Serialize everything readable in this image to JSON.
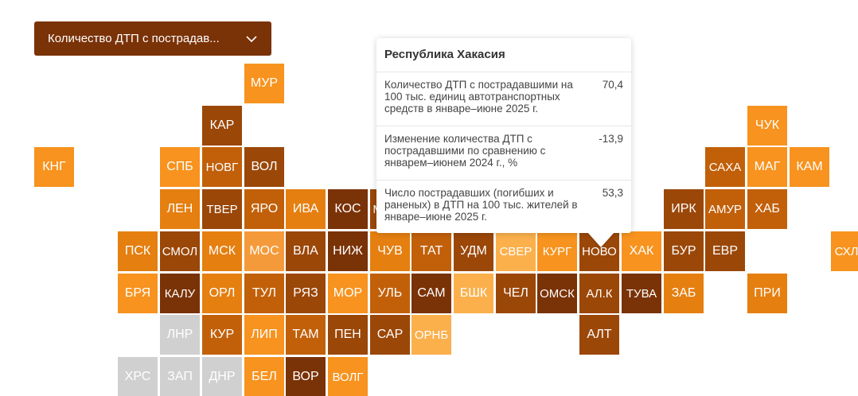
{
  "dropdown": {
    "label": "Количество ДТП с пострадав...",
    "icon": "chevron-down-icon"
  },
  "colors": {
    "c1": "#f7931e",
    "c2": "#e57f10",
    "c3": "#c2600a",
    "c4": "#9b4708",
    "c5": "#7a3207",
    "c6": "#fbb04c",
    "nodata": "#d0d0d0",
    "header": "#7a3207"
  },
  "regions": [
    {
      "code": "МУР",
      "color": "#f7931e"
    },
    {
      "code": "КАР",
      "color": "#9b4708"
    },
    {
      "code": "ЧУК",
      "color": "#f7931e"
    },
    {
      "code": "КНГ",
      "color": "#f7931e"
    },
    {
      "code": "СПБ",
      "color": "#f7931e"
    },
    {
      "code": "НОВГ",
      "color": "#c2600a"
    },
    {
      "code": "ВОЛ",
      "color": "#9b4708"
    },
    {
      "code": "САХА",
      "color": "#c2600a"
    },
    {
      "code": "МАГ",
      "color": "#f7931e"
    },
    {
      "code": "КАМ",
      "color": "#f7931e"
    },
    {
      "code": "ЛЕН",
      "color": "#e57f10"
    },
    {
      "code": "ТВЕР",
      "color": "#9b4708"
    },
    {
      "code": "ЯРО",
      "color": "#c2600a"
    },
    {
      "code": "ИВА",
      "color": "#e57f10"
    },
    {
      "code": "КОС",
      "color": "#7a3207"
    },
    {
      "code": "МАРИ",
      "color": "#9b4708"
    },
    {
      "code": "ИРК",
      "color": "#9b4708"
    },
    {
      "code": "АМУР",
      "color": "#c2600a"
    },
    {
      "code": "ХАБ",
      "color": "#c2600a"
    },
    {
      "code": "ПСК",
      "color": "#e57f10"
    },
    {
      "code": "СМОЛ",
      "color": "#9b4708"
    },
    {
      "code": "МСК",
      "color": "#e57f10"
    },
    {
      "code": "МОС",
      "color": "#f59a3a"
    },
    {
      "code": "ВЛА",
      "color": "#9b4708"
    },
    {
      "code": "НИЖ",
      "color": "#7a3207"
    },
    {
      "code": "ЧУВ",
      "color": "#e57f10"
    },
    {
      "code": "ТАТ",
      "color": "#c2600a"
    },
    {
      "code": "УДМ",
      "color": "#9b4708"
    },
    {
      "code": "СВЕР",
      "color": "#fbb04c"
    },
    {
      "code": "КУРГ",
      "color": "#f7931e"
    },
    {
      "code": "НОВО",
      "color": "#9b4708"
    },
    {
      "code": "ХАК",
      "color": "#f7931e"
    },
    {
      "code": "БУР",
      "color": "#9b4708"
    },
    {
      "code": "ЕВР",
      "color": "#9b4708"
    },
    {
      "code": "СХЛН",
      "color": "#f7931e"
    },
    {
      "code": "БРЯ",
      "color": "#f7931e"
    },
    {
      "code": "КАЛУ",
      "color": "#7a3207"
    },
    {
      "code": "ОРЛ",
      "color": "#e57f10"
    },
    {
      "code": "ТУЛ",
      "color": "#c2600a"
    },
    {
      "code": "РЯЗ",
      "color": "#9b4708"
    },
    {
      "code": "МОР",
      "color": "#f7931e"
    },
    {
      "code": "УЛЬ",
      "color": "#c2600a"
    },
    {
      "code": "САМ",
      "color": "#7a3207"
    },
    {
      "code": "БШК",
      "color": "#fbb04c"
    },
    {
      "code": "ЧЕЛ",
      "color": "#9b4708"
    },
    {
      "code": "ОМСК",
      "color": "#7a3207"
    },
    {
      "code": "АЛ.К",
      "color": "#9b4708"
    },
    {
      "code": "ТУВА",
      "color": "#7a3207"
    },
    {
      "code": "ЗАБ",
      "color": "#e57f10"
    },
    {
      "code": "ПРИ",
      "color": "#e57f10"
    },
    {
      "code": "ЛНР",
      "color": "#d0d0d0"
    },
    {
      "code": "КУР",
      "color": "#c2600a"
    },
    {
      "code": "ЛИП",
      "color": "#f7931e"
    },
    {
      "code": "ТАМ",
      "color": "#c2600a"
    },
    {
      "code": "ПЕН",
      "color": "#9b4708"
    },
    {
      "code": "САР",
      "color": "#9b4708"
    },
    {
      "code": "ОРНБ",
      "color": "#fbb04c"
    },
    {
      "code": "АЛТ",
      "color": "#9b4708"
    },
    {
      "code": "ХРС",
      "color": "#d0d0d0"
    },
    {
      "code": "ЗАП",
      "color": "#d0d0d0"
    },
    {
      "code": "ДНР",
      "color": "#d0d0d0"
    },
    {
      "code": "БЕЛ",
      "color": "#f7931e"
    },
    {
      "code": "ВОР",
      "color": "#7a3207"
    },
    {
      "code": "ВОЛГ",
      "color": "#f7931e"
    }
  ],
  "tooltip": {
    "title": "Республика Хакасия",
    "rows": [
      {
        "label": "Количество ДТП с пострадавшими на 100 тыс. единиц автотранспортных средств в январе–июне 2025 г.",
        "value": "70,4"
      },
      {
        "label": "Изменение количества ДТП с пострадавшими по сравнению с январем–июнем 2024 г., %",
        "value": "-13,9"
      },
      {
        "label": "Число пострадавших (погибших и раненых) в ДТП на 100 тыс. жителей в январе–июне 2025 г.",
        "value": "53,3"
      }
    ]
  }
}
